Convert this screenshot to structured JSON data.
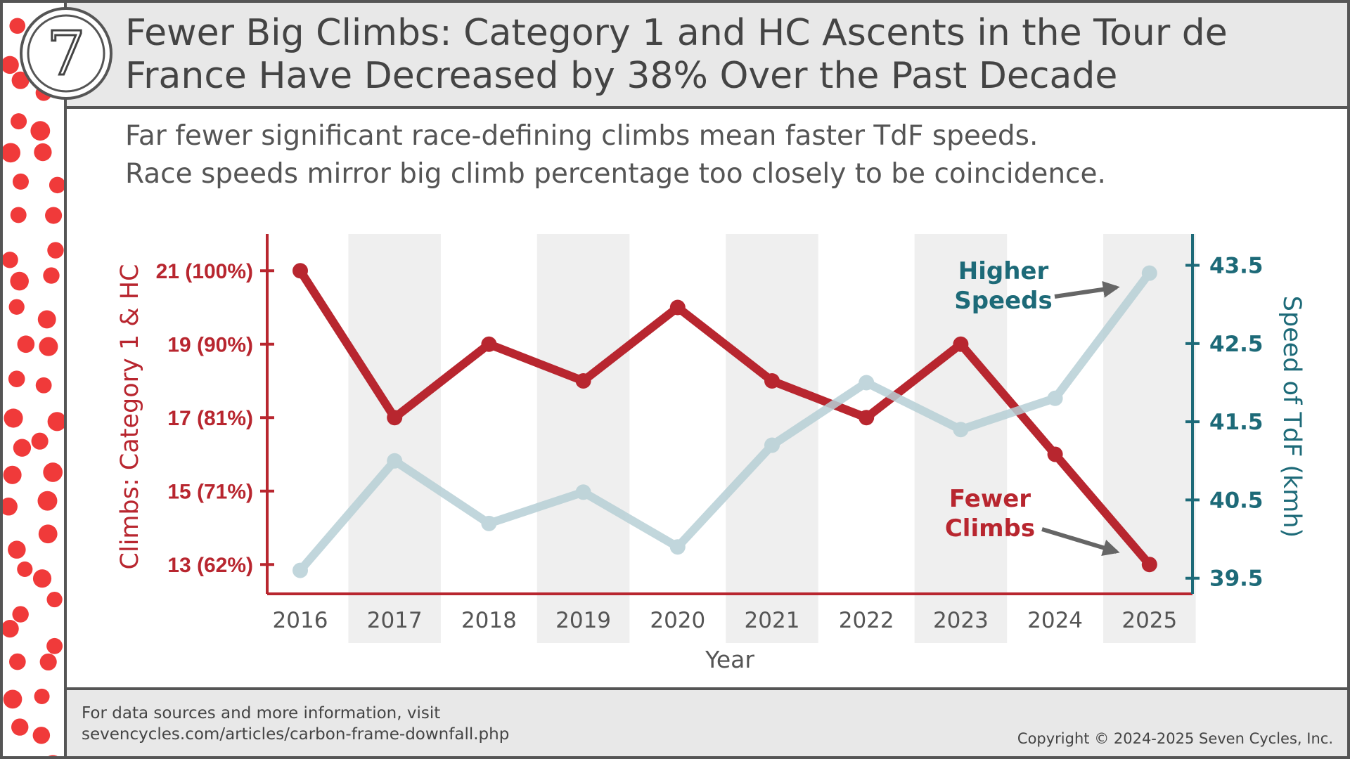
{
  "logo": "7",
  "chart_data": {
    "type": "line",
    "title": [
      "Fewer Big Climbs:  Category 1 and HC Ascents in the Tour de",
      "France Have Decreased by 38% Over the Past Decade"
    ],
    "subtitle": [
      "Far fewer significant race-defining climbs mean faster TdF speeds.",
      "Race speeds mirror big climb percentage too closely to be coincidence."
    ],
    "xlabel": "Year",
    "ylabel": "Climbs:  Category 1 & HC",
    "y2label": "Speed of TdF (kmh)",
    "categories": [
      "2016",
      "2017",
      "2018",
      "2019",
      "2020",
      "2021",
      "2022",
      "2023",
      "2024",
      "2025"
    ],
    "series": [
      {
        "name": "Fewer Climbs",
        "color": "#b8262f",
        "values": [
          21,
          17,
          19,
          18,
          20,
          18,
          17,
          19,
          16,
          13
        ]
      },
      {
        "name": "Higher Speeds",
        "color": "#b7d0d6",
        "axis": "y2",
        "values": [
          39.6,
          41.0,
          40.2,
          40.6,
          39.9,
          41.2,
          42.0,
          41.4,
          41.8,
          43.4
        ]
      }
    ],
    "ylim": [
      12.2,
      22
    ],
    "yticks": [
      {
        "value": 13,
        "label": "13 (62%)"
      },
      {
        "value": 15,
        "label": "15 (71%)"
      },
      {
        "value": 17,
        "label": "17 (81%)"
      },
      {
        "value": 19,
        "label": "19 (90%)"
      },
      {
        "value": 21,
        "label": "21 (100%)"
      }
    ],
    "y2lim": [
      39.3,
      43.9
    ],
    "y2ticks": [
      39.5,
      40.5,
      41.5,
      42.5,
      43.5
    ],
    "grid": false
  },
  "footer": {
    "source": [
      "For data sources and more information, visit",
      "sevencycles.com/articles/carbon-frame-downfall.php"
    ],
    "copyright": "Copyright © 2024-2025 Seven Cycles, Inc."
  }
}
